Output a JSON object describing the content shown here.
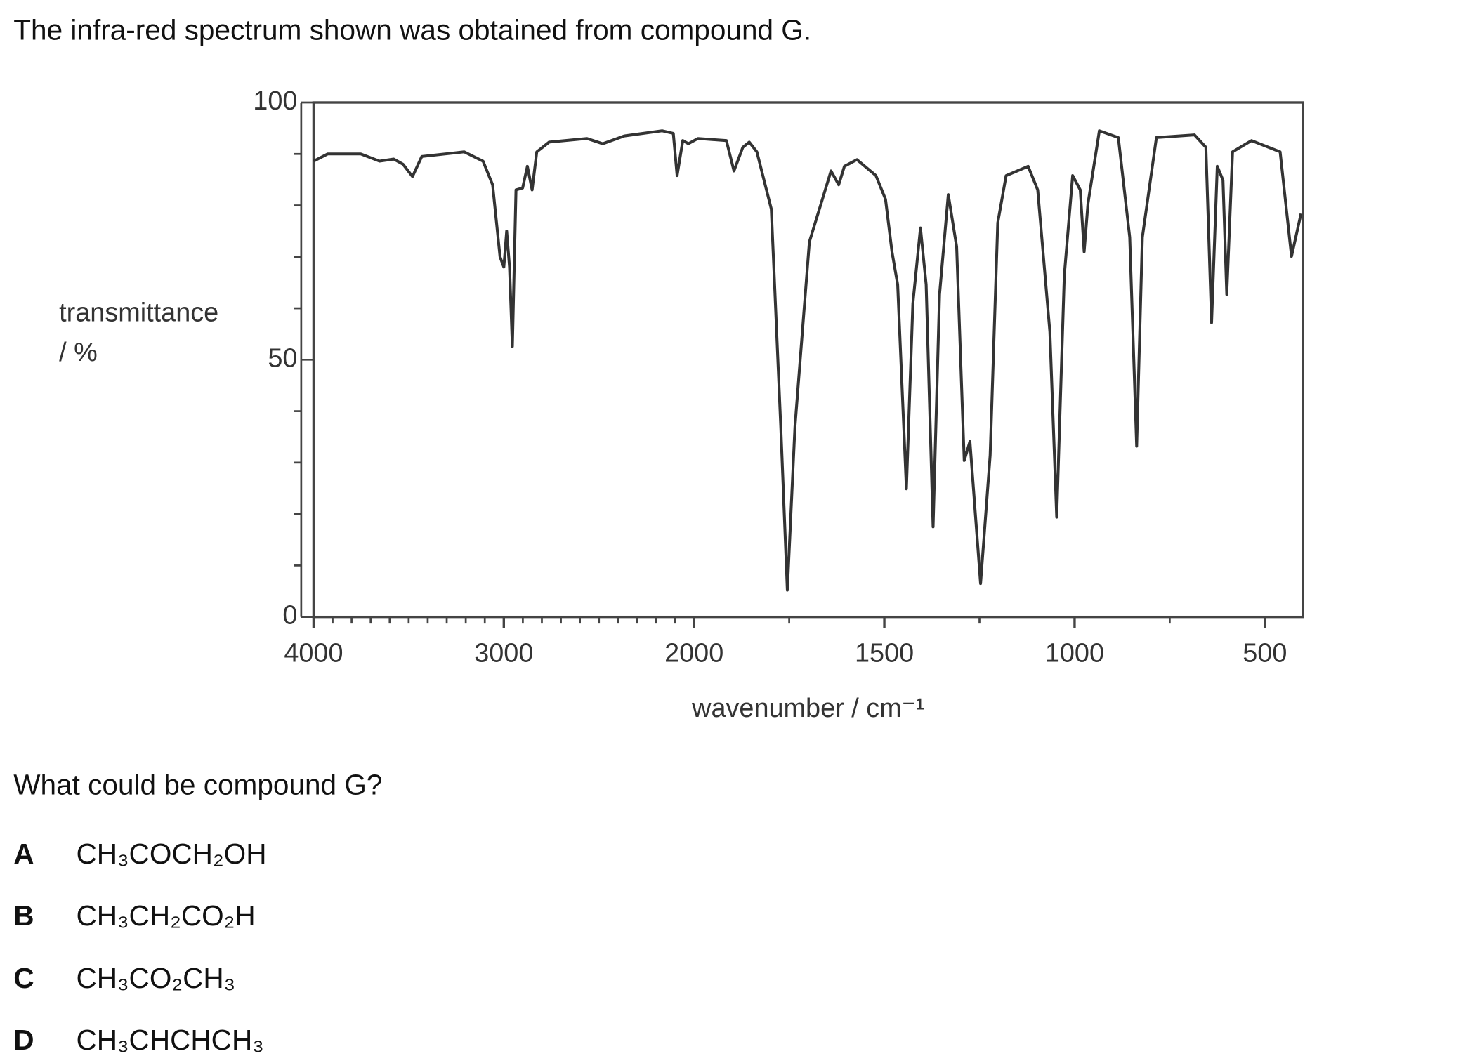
{
  "question": "The infra-red spectrum shown was obtained from compound G.",
  "prompt": "What could be compound G?",
  "options": [
    {
      "letter": "A",
      "formula": "CH₃COCH₂OH"
    },
    {
      "letter": "B",
      "formula": "CH₃CH₂CO₂H"
    },
    {
      "letter": "C",
      "formula": "CH₃CO₂CH₃"
    },
    {
      "letter": "D",
      "formula": "CH₃CHCHCH₃"
    }
  ],
  "chart_data": {
    "type": "line",
    "ylabel": [
      "transmittance",
      "/ %"
    ],
    "xlabel": "wavenumber / cm⁻¹",
    "color": "#333333",
    "xlim": [
      4000,
      400
    ],
    "xbreak": 2000,
    "xticks": [
      4000,
      3000,
      2000,
      1500,
      1000,
      500
    ],
    "xminorticks": [
      3900,
      3800,
      3700,
      3600,
      3500,
      3400,
      3300,
      3200,
      3100,
      2900,
      2800,
      2700,
      2600,
      2500,
      2400,
      2300,
      2200,
      2100,
      1750,
      1250,
      750
    ],
    "ylim": [
      0,
      100
    ],
    "yticks": [
      0,
      50,
      100
    ],
    "yminorticks": [
      10,
      20,
      30,
      40,
      60,
      70,
      80,
      90
    ],
    "x": [
      4000,
      3926,
      3752,
      3653,
      3579,
      3530,
      3480,
      3431,
      3208,
      3109,
      3059,
      3020,
      3000,
      2985,
      2970,
      2955,
      2936,
      2901,
      2876,
      2851,
      2827,
      2762,
      2564,
      2480,
      2366,
      2168,
      2109,
      2089,
      2059,
      2030,
      1990,
      1915,
      1895,
      1872,
      1855,
      1835,
      1797,
      1772,
      1755,
      1735,
      1697,
      1640,
      1620,
      1605,
      1572,
      1522,
      1497,
      1480,
      1465,
      1442,
      1425,
      1405,
      1390,
      1372,
      1355,
      1332,
      1310,
      1290,
      1275,
      1247,
      1222,
      1202,
      1180,
      1122,
      1097,
      1065,
      1047,
      1027,
      1005,
      985,
      975,
      965,
      935,
      885,
      855,
      837,
      822,
      785,
      685,
      655,
      640,
      625,
      610,
      600,
      585,
      535,
      460,
      430,
      405
    ],
    "values": [
      88.6,
      90,
      90,
      88.6,
      89,
      88,
      85.6,
      89.5,
      90.4,
      88.6,
      84,
      70,
      68,
      75,
      68,
      52.6,
      83,
      83.4,
      87.6,
      83,
      90.4,
      92.3,
      93,
      92,
      93.5,
      94.5,
      94,
      85.8,
      92.6,
      92,
      93,
      92.6,
      86.7,
      91.3,
      92.3,
      90.4,
      79.3,
      36.9,
      5.2,
      36.9,
      72.9,
      86.7,
      84,
      87.6,
      88.9,
      85.8,
      81.2,
      71,
      64.6,
      24.9,
      60.9,
      75.6,
      64.6,
      17.5,
      62.7,
      82.1,
      72,
      30.4,
      34.1,
      6.5,
      31.4,
      76.6,
      85.8,
      87.6,
      83,
      55.4,
      19.4,
      66.4,
      85.8,
      83,
      71,
      80.3,
      94.5,
      93.2,
      73.8,
      33.2,
      73.8,
      93.2,
      93.7,
      91.3,
      57.2,
      87.6,
      84.9,
      62.7,
      90.4,
      92.6,
      90.4,
      70.1,
      78.4
    ]
  }
}
